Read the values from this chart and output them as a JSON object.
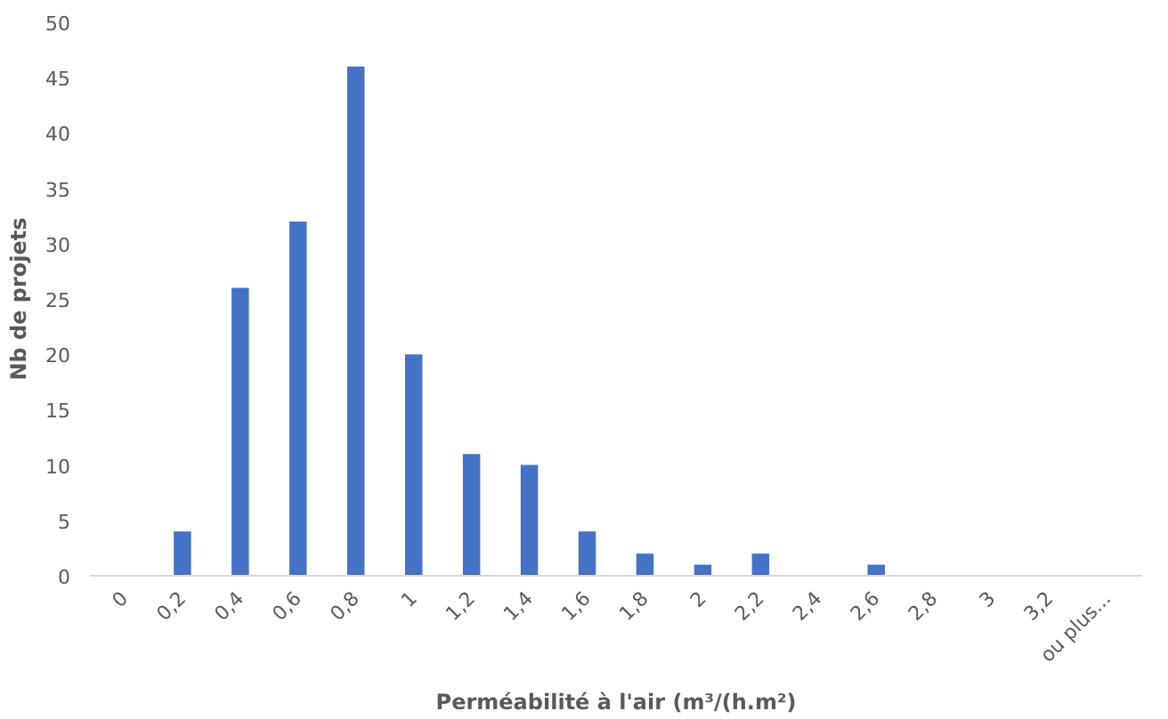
{
  "chart_data": {
    "type": "bar",
    "xlabel": "Perméabilité à l'air (m³/(h.m²)",
    "ylabel": "Nb de projets",
    "categories": [
      "0",
      "0,2",
      "0,4",
      "0,6",
      "0,8",
      "1",
      "1,2",
      "1,4",
      "1,6",
      "1,8",
      "2",
      "2,2",
      "2,4",
      "2,6",
      "2,8",
      "3",
      "3,2",
      "ou plus..."
    ],
    "values": [
      0,
      4,
      26,
      32,
      46,
      20,
      11,
      10,
      4,
      2,
      1,
      2,
      0,
      1,
      0,
      0,
      0,
      0
    ],
    "color": "#4472c4",
    "ylim": [
      0,
      50
    ],
    "yticks": [
      0,
      5,
      10,
      15,
      20,
      25,
      30,
      35,
      40,
      45,
      50
    ],
    "grid": false
  }
}
